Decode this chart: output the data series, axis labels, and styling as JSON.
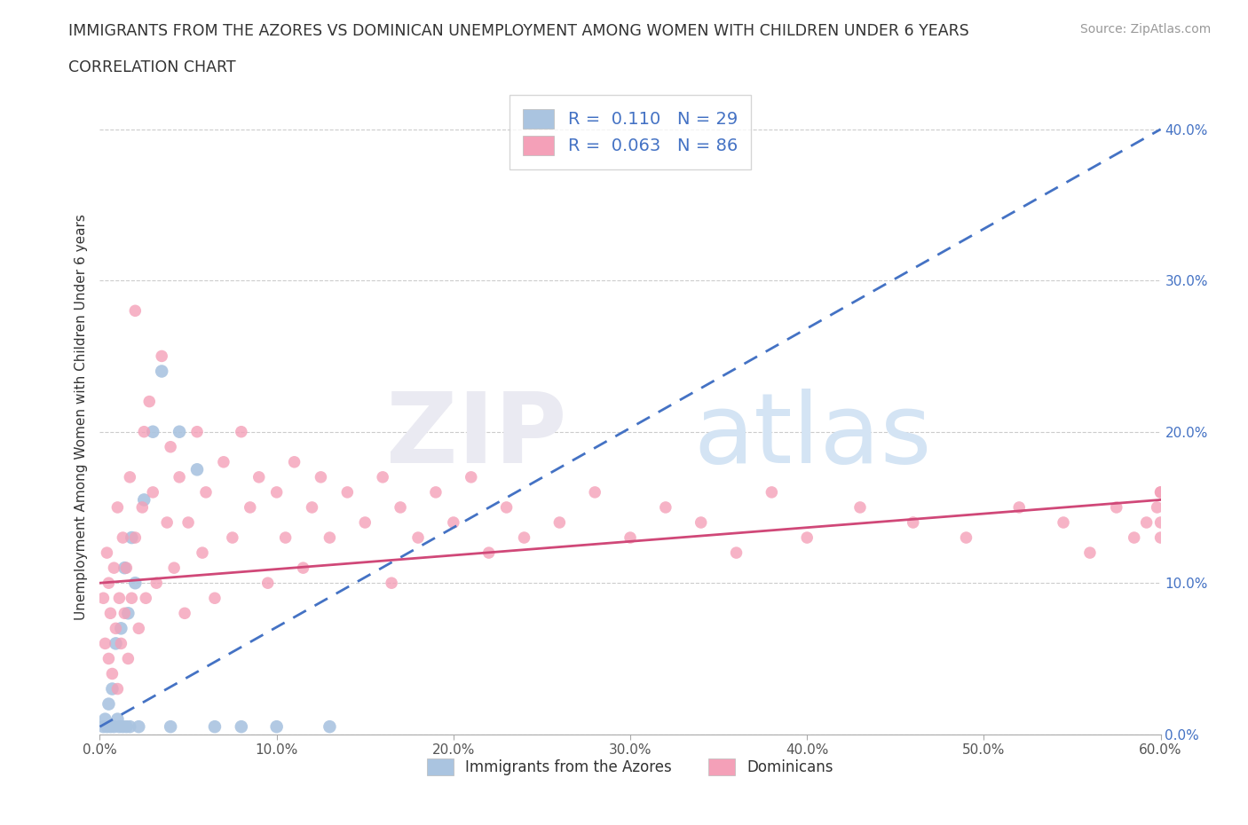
{
  "title": "IMMIGRANTS FROM THE AZORES VS DOMINICAN UNEMPLOYMENT AMONG WOMEN WITH CHILDREN UNDER 6 YEARS",
  "subtitle": "CORRELATION CHART",
  "source": "Source: ZipAtlas.com",
  "ylabel": "Unemployment Among Women with Children Under 6 years",
  "legend_label_1": "Immigrants from the Azores",
  "legend_label_2": "Dominicans",
  "R1": 0.11,
  "N1": 29,
  "R2": 0.063,
  "N2": 86,
  "color1": "#aac4e0",
  "color2": "#f4a0b8",
  "line1_color": "#4472c4",
  "line2_color": "#d04878",
  "xlim": [
    0.0,
    0.6
  ],
  "ylim": [
    0.0,
    0.42
  ],
  "azores_x": [
    0.002,
    0.003,
    0.004,
    0.005,
    0.006,
    0.007,
    0.008,
    0.009,
    0.01,
    0.011,
    0.012,
    0.013,
    0.014,
    0.015,
    0.016,
    0.017,
    0.018,
    0.02,
    0.022,
    0.025,
    0.03,
    0.035,
    0.04,
    0.045,
    0.055,
    0.065,
    0.08,
    0.1,
    0.13
  ],
  "azores_y": [
    0.005,
    0.01,
    0.005,
    0.02,
    0.005,
    0.03,
    0.005,
    0.06,
    0.01,
    0.005,
    0.07,
    0.005,
    0.11,
    0.005,
    0.08,
    0.005,
    0.13,
    0.1,
    0.005,
    0.155,
    0.2,
    0.24,
    0.005,
    0.2,
    0.175,
    0.005,
    0.005,
    0.005,
    0.005
  ],
  "dominican_x": [
    0.002,
    0.003,
    0.004,
    0.005,
    0.005,
    0.006,
    0.007,
    0.008,
    0.009,
    0.01,
    0.01,
    0.011,
    0.012,
    0.013,
    0.014,
    0.015,
    0.016,
    0.017,
    0.018,
    0.02,
    0.02,
    0.022,
    0.024,
    0.025,
    0.026,
    0.028,
    0.03,
    0.032,
    0.035,
    0.038,
    0.04,
    0.042,
    0.045,
    0.048,
    0.05,
    0.055,
    0.058,
    0.06,
    0.065,
    0.07,
    0.075,
    0.08,
    0.085,
    0.09,
    0.095,
    0.1,
    0.105,
    0.11,
    0.115,
    0.12,
    0.125,
    0.13,
    0.14,
    0.15,
    0.16,
    0.165,
    0.17,
    0.18,
    0.19,
    0.2,
    0.21,
    0.22,
    0.23,
    0.24,
    0.26,
    0.28,
    0.3,
    0.32,
    0.34,
    0.36,
    0.38,
    0.4,
    0.43,
    0.46,
    0.49,
    0.52,
    0.545,
    0.56,
    0.575,
    0.585,
    0.592,
    0.598,
    0.6,
    0.6,
    0.6,
    0.6
  ],
  "dominican_y": [
    0.09,
    0.06,
    0.12,
    0.05,
    0.1,
    0.08,
    0.04,
    0.11,
    0.07,
    0.03,
    0.15,
    0.09,
    0.06,
    0.13,
    0.08,
    0.11,
    0.05,
    0.17,
    0.09,
    0.13,
    0.28,
    0.07,
    0.15,
    0.2,
    0.09,
    0.22,
    0.16,
    0.1,
    0.25,
    0.14,
    0.19,
    0.11,
    0.17,
    0.08,
    0.14,
    0.2,
    0.12,
    0.16,
    0.09,
    0.18,
    0.13,
    0.2,
    0.15,
    0.17,
    0.1,
    0.16,
    0.13,
    0.18,
    0.11,
    0.15,
    0.17,
    0.13,
    0.16,
    0.14,
    0.17,
    0.1,
    0.15,
    0.13,
    0.16,
    0.14,
    0.17,
    0.12,
    0.15,
    0.13,
    0.14,
    0.16,
    0.13,
    0.15,
    0.14,
    0.12,
    0.16,
    0.13,
    0.15,
    0.14,
    0.13,
    0.15,
    0.14,
    0.12,
    0.15,
    0.13,
    0.14,
    0.15,
    0.16,
    0.13,
    0.14,
    0.16
  ]
}
